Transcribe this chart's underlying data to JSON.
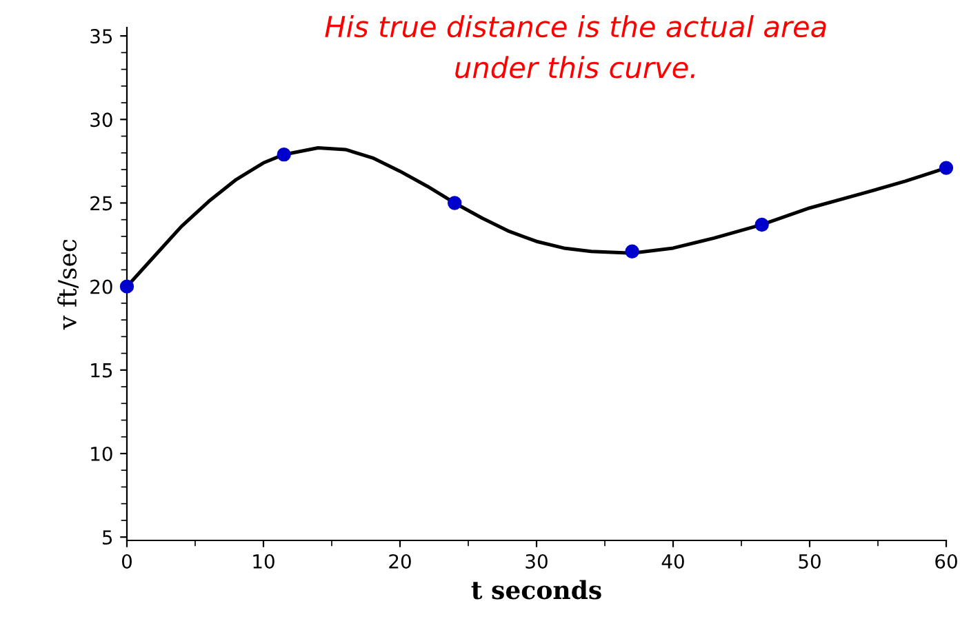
{
  "chart_data": {
    "type": "line",
    "xlabel": "t seconds",
    "ylabel": "v ft/sec",
    "annotations": [
      "His true distance is the actual area\nunder this curve."
    ],
    "series": [
      {
        "color": "#000000",
        "marker": "none",
        "x": [
          0,
          2,
          4,
          6,
          8,
          10,
          11.5,
          14,
          16,
          18,
          20,
          22,
          24,
          26,
          28,
          30,
          32,
          34,
          37,
          40,
          43,
          46.5,
          50,
          54,
          57,
          60
        ],
        "values": [
          20,
          21.8,
          23.6,
          25.1,
          26.4,
          27.4,
          27.9,
          28.3,
          28.2,
          27.7,
          26.9,
          26.0,
          25.0,
          24.1,
          23.3,
          22.7,
          22.3,
          22.1,
          22.0,
          22.3,
          22.9,
          23.7,
          24.7,
          25.6,
          26.3,
          27.1
        ]
      },
      {
        "type": "scatter",
        "color": "#0000cc",
        "marker": "circle",
        "x": [
          0,
          11.5,
          24,
          37,
          46.5,
          60
        ],
        "values": [
          20,
          27.9,
          25.0,
          22.1,
          23.7,
          27.1
        ]
      }
    ],
    "xlim": [
      0,
      60
    ],
    "xticks": [
      0,
      10,
      20,
      30,
      40,
      50,
      60
    ],
    "ylim": [
      4.8,
      35.5
    ],
    "yticks": [
      5,
      10,
      15,
      20,
      25,
      30,
      35
    ],
    "grid": false,
    "legend": false
  }
}
